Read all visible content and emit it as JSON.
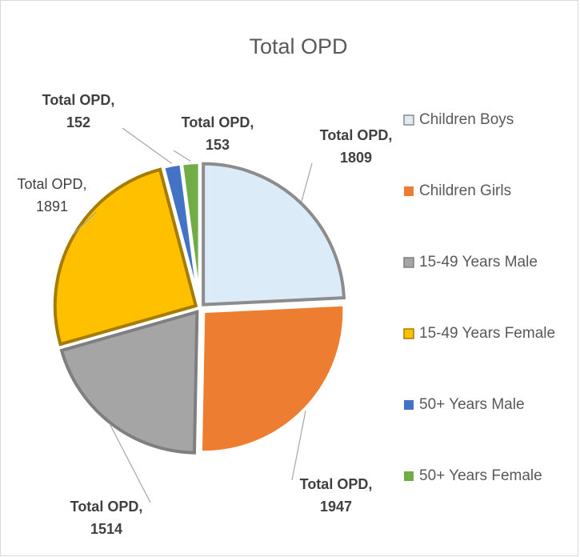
{
  "chart_data": {
    "type": "pie",
    "title": "Total OPD",
    "series_name": "Total OPD",
    "categories": [
      "Children Boys",
      "Children Girls",
      "15-49 Years Male",
      "15-49 Years Female",
      "50+ Years Male",
      "50+ Years Female"
    ],
    "values": [
      1809,
      1947,
      1514,
      1891,
      152,
      153
    ],
    "value_labels": [
      "Total OPD, 1809",
      "Total OPD, 1947",
      "Total OPD, 1514",
      "Total OPD, 1891",
      "Total OPD, 152",
      "Total OPD, 153"
    ],
    "label_bold": [
      true,
      true,
      true,
      false,
      true,
      true
    ],
    "colors": [
      "#dcebf8",
      "#ed7d31",
      "#a5a5a5",
      "#ffc000",
      "#4472c4",
      "#70ad47"
    ],
    "legend": "right"
  }
}
